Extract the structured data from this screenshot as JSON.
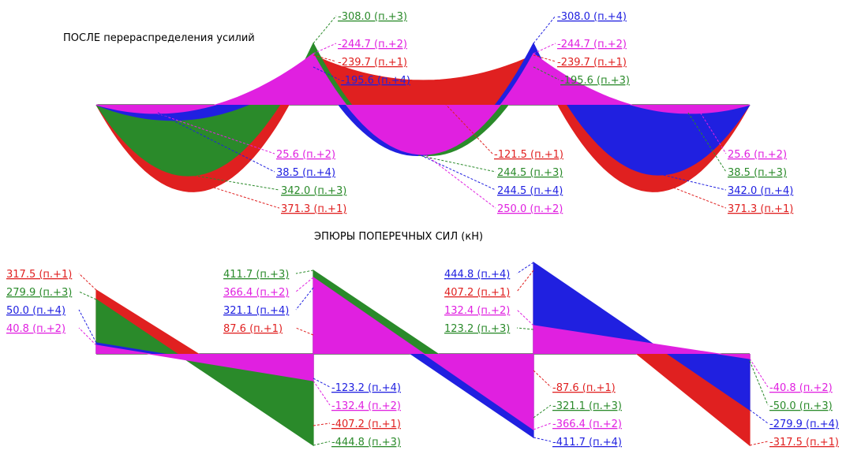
{
  "title": "ПОСЛЕ перераспределения усилий",
  "subtitle": "ЭПЮРЫ ПОПЕРЕЧНЫХ СИЛ (кН)",
  "labels": [
    "-308.0 (п.+3)",
    "-244.7 (п.+2)",
    "-239.7 (п.+1)",
    "-195.6 (п.+4)",
    "-308.0 (п.+4)",
    "-244.7 (п.+2)",
    "-239.7 (п.+1)",
    "-195.6 (п.+3)",
    "25.6 (п.+2)",
    "38.5 (п.+4)",
    "342.0 (п.+3)",
    "371.3 (п.+1)",
    "-121.5 (п.+1)",
    "244.5 (п.+3)",
    "244.5 (п.+4)",
    "250.0 (п.+2)",
    "25.6 (п.+2)",
    "38.5 (п.+3)",
    "342.0 (п.+4)",
    "371.3 (п.+1)",
    "317.5 (п.+1)",
    "279.9 (п.+3)",
    "50.0 (п.+4)",
    "40.8 (п.+2)",
    "411.7 (п.+3)",
    "366.4 (п.+2)",
    "321.1 (п.+4)",
    "87.6 (п.+1)",
    "444.8 (п.+4)",
    "407.2 (п.+1)",
    "132.4 (п.+2)",
    "123.2 (п.+3)",
    "-123.2 (п.+4)",
    "-132.4 (п.+2)",
    "-407.2 (п.+1)",
    "-444.8 (п.+3)",
    "-87.6 (п.+1)",
    "-321.1 (п.+3)",
    "-366.4 (п.+2)",
    "-411.7 (п.+4)",
    "-40.8 (п.+2)",
    "-50.0 (п.+3)",
    "-279.9 (п.+4)",
    "-317.5 (п.+1)"
  ]
}
